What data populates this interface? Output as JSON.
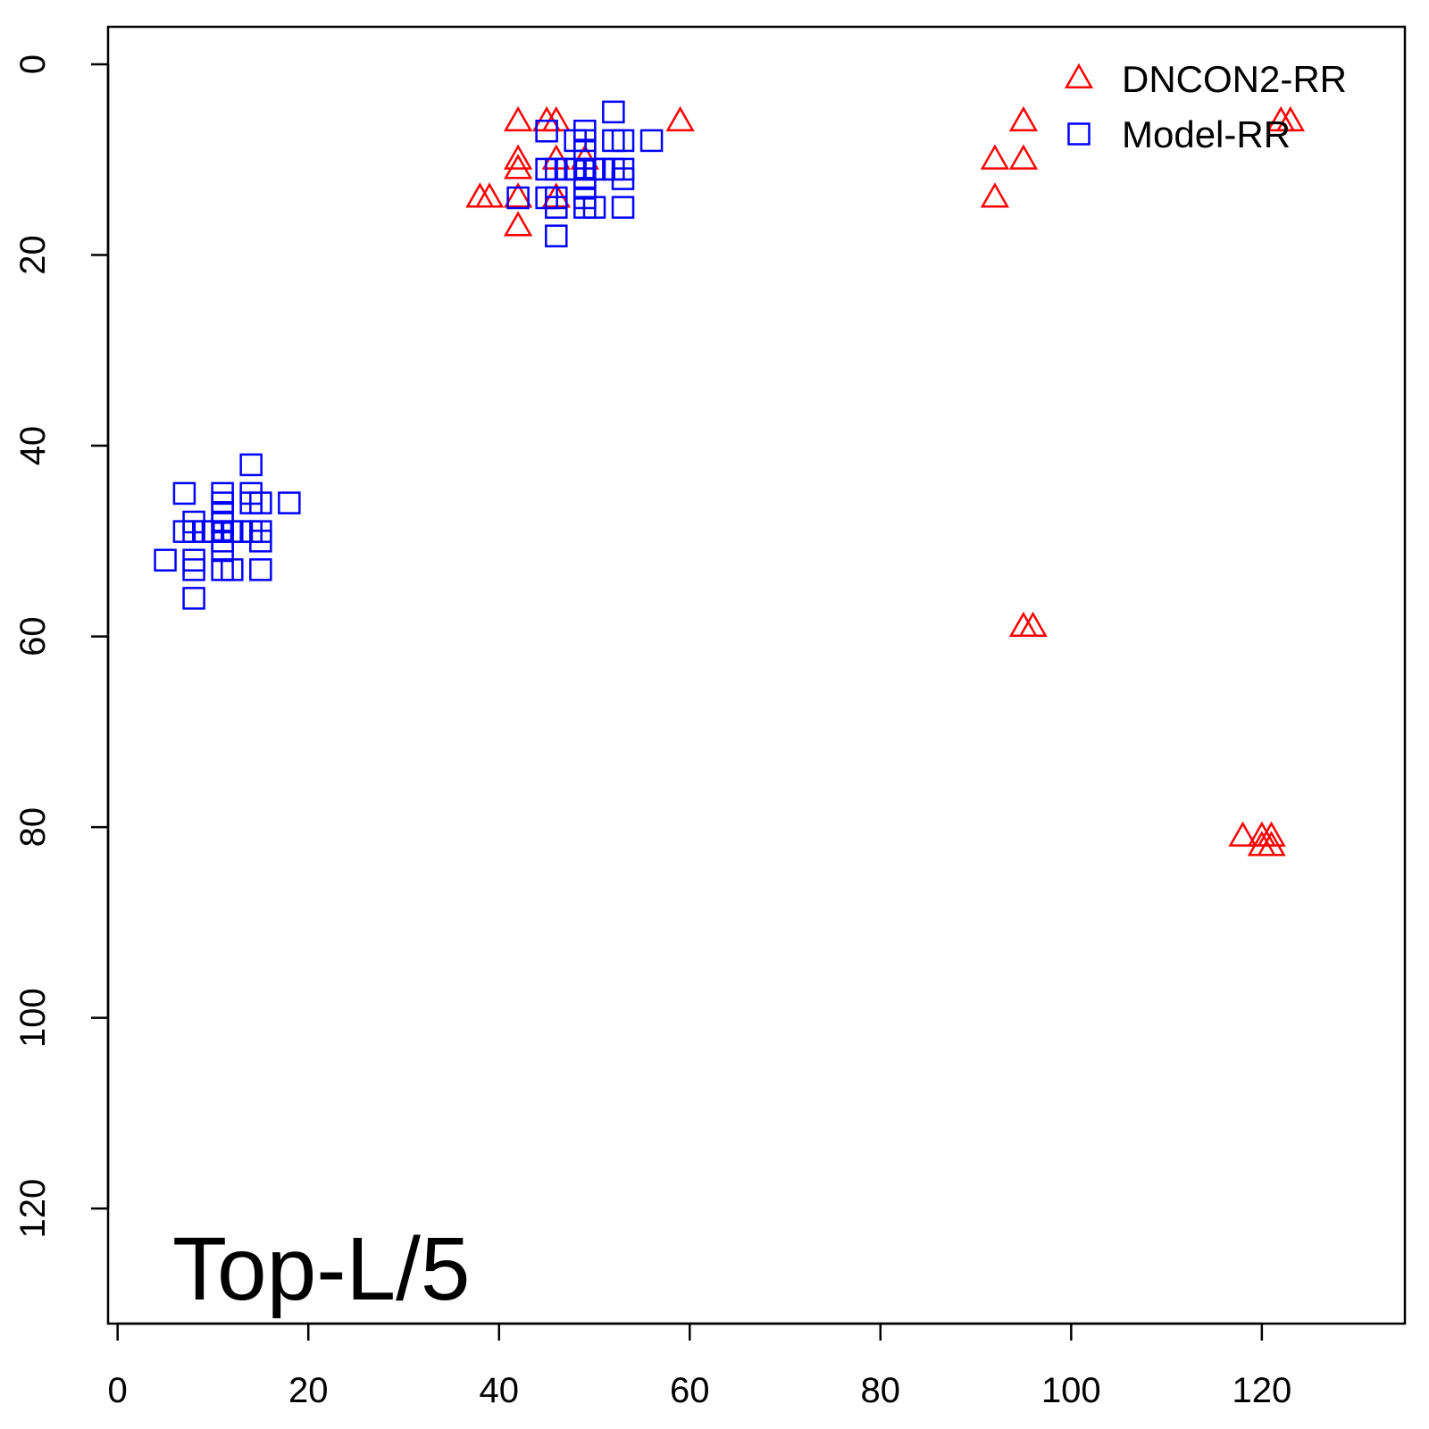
{
  "chart_data": {
    "type": "scatter",
    "title": "",
    "xlabel": "",
    "ylabel": "",
    "annotation": "Top-L/5",
    "xlim": [
      -1,
      135
    ],
    "ylim": [
      0,
      136
    ],
    "y_inverted": true,
    "x_ticks": [
      0,
      20,
      40,
      60,
      80,
      100,
      120
    ],
    "y_ticks": [
      0,
      20,
      40,
      60,
      80,
      100,
      120
    ],
    "grid": false,
    "legend_position": "top-right",
    "series": [
      {
        "name": "DNCON2-RR",
        "marker": "triangle",
        "color": "#ff0000",
        "points": [
          [
            42,
            6
          ],
          [
            45,
            6
          ],
          [
            46,
            6
          ],
          [
            59,
            6
          ],
          [
            42,
            10
          ],
          [
            46,
            10
          ],
          [
            49,
            10
          ],
          [
            42,
            11
          ],
          [
            38,
            14
          ],
          [
            39,
            14
          ],
          [
            42,
            14
          ],
          [
            46,
            14
          ],
          [
            42,
            17
          ],
          [
            95,
            6
          ],
          [
            92,
            10
          ],
          [
            95,
            10
          ],
          [
            92,
            14
          ],
          [
            122,
            6
          ],
          [
            123,
            6
          ],
          [
            95,
            59
          ],
          [
            96,
            59
          ],
          [
            118,
            81
          ],
          [
            120,
            81
          ],
          [
            121,
            81
          ],
          [
            120,
            82
          ],
          [
            121,
            82
          ]
        ]
      },
      {
        "name": "Model-RR",
        "marker": "square",
        "color": "#0000ff",
        "points": [
          [
            52,
            5
          ],
          [
            45,
            7
          ],
          [
            49,
            7
          ],
          [
            48,
            8
          ],
          [
            49,
            8
          ],
          [
            52,
            8
          ],
          [
            53,
            8
          ],
          [
            56,
            8
          ],
          [
            49,
            9
          ],
          [
            45,
            11
          ],
          [
            46,
            11
          ],
          [
            47,
            11
          ],
          [
            48,
            11
          ],
          [
            49,
            11
          ],
          [
            50,
            11
          ],
          [
            51,
            11
          ],
          [
            52,
            11
          ],
          [
            53,
            11
          ],
          [
            49,
            12
          ],
          [
            53,
            12
          ],
          [
            49,
            13
          ],
          [
            42,
            14
          ],
          [
            45,
            14
          ],
          [
            46,
            14
          ],
          [
            49,
            14
          ],
          [
            46,
            15
          ],
          [
            49,
            15
          ],
          [
            50,
            15
          ],
          [
            53,
            15
          ],
          [
            46,
            18
          ],
          [
            14,
            42
          ],
          [
            7,
            45
          ],
          [
            11,
            45
          ],
          [
            14,
            45
          ],
          [
            11,
            46
          ],
          [
            14,
            46
          ],
          [
            15,
            46
          ],
          [
            18,
            46
          ],
          [
            11,
            47
          ],
          [
            8,
            48
          ],
          [
            11,
            48
          ],
          [
            7,
            49
          ],
          [
            8,
            49
          ],
          [
            9,
            49
          ],
          [
            10,
            49
          ],
          [
            11,
            49
          ],
          [
            12,
            49
          ],
          [
            13,
            49
          ],
          [
            14,
            49
          ],
          [
            15,
            49
          ],
          [
            11,
            50
          ],
          [
            15,
            50
          ],
          [
            11,
            51
          ],
          [
            5,
            52
          ],
          [
            8,
            52
          ],
          [
            8,
            53
          ],
          [
            11,
            53
          ],
          [
            12,
            53
          ],
          [
            15,
            53
          ],
          [
            8,
            56
          ]
        ]
      }
    ]
  }
}
